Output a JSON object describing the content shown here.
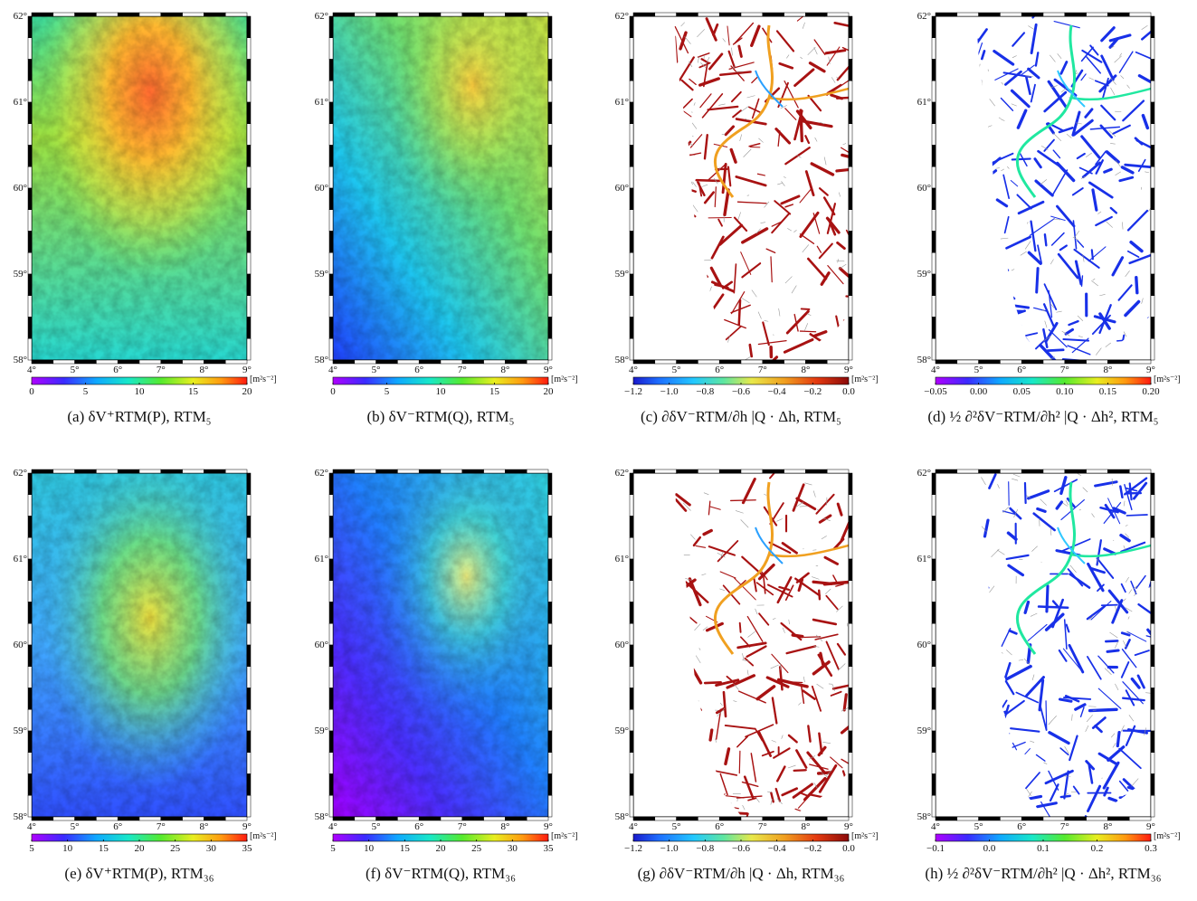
{
  "axes": {
    "lat_labels": [
      "62°",
      "61°",
      "60°",
      "59°",
      "58°"
    ],
    "lon_labels": [
      "4°",
      "5°",
      "6°",
      "7°",
      "8°",
      "9°"
    ]
  },
  "panels": [
    {
      "id": "a",
      "caption": "(a) δV⁺RTM(P), RTM₅",
      "field": "smooth-high-center",
      "colorbar": {
        "ticks": [
          "0",
          "5",
          "10",
          "15",
          "20"
        ],
        "unit": "[m²s⁻²]",
        "palette": "rainbow"
      }
    },
    {
      "id": "b",
      "caption": "(b) δV⁻RTM(Q), RTM₅",
      "field": "smooth-gradient",
      "colorbar": {
        "ticks": [
          "0",
          "5",
          "10",
          "15",
          "20"
        ],
        "unit": "[m²s⁻²]",
        "palette": "rainbow"
      }
    },
    {
      "id": "c",
      "caption": "(c) ∂δV⁻RTM/∂h |Q · Δh, RTM₅",
      "field": "river-red",
      "colorbar": {
        "ticks": [
          "−1.2",
          "−1.0",
          "−0.8",
          "−0.6",
          "−0.4",
          "−0.2",
          "0.0"
        ],
        "unit": "[m²s⁻²]",
        "palette": "blue-red"
      }
    },
    {
      "id": "d",
      "caption": "(d) ½ ∂²δV⁻RTM/∂h² |Q · Δh², RTM₅",
      "field": "river-blue",
      "colorbar": {
        "ticks": [
          "−0.05",
          "0.00",
          "0.05",
          "0.10",
          "0.15",
          "0.20"
        ],
        "unit": "[m²s⁻²]",
        "palette": "rainbow"
      }
    },
    {
      "id": "e",
      "caption": "(e) δV⁺RTM(P), RTM₃₆",
      "field": "smooth-high-center-cool",
      "colorbar": {
        "ticks": [
          "5",
          "10",
          "15",
          "20",
          "25",
          "30",
          "35"
        ],
        "unit": "[m²s⁻²]",
        "palette": "rainbow"
      }
    },
    {
      "id": "f",
      "caption": "(f) δV⁻RTM(Q), RTM₃₆",
      "field": "smooth-gradient-purple",
      "colorbar": {
        "ticks": [
          "5",
          "10",
          "15",
          "20",
          "25",
          "30",
          "35"
        ],
        "unit": "[m²s⁻²]",
        "palette": "rainbow"
      }
    },
    {
      "id": "g",
      "caption": "(g) ∂δV⁻RTM/∂h |Q · Δh, RTM₃₆",
      "field": "river-red",
      "colorbar": {
        "ticks": [
          "−1.2",
          "−1.0",
          "−0.8",
          "−0.6",
          "−0.4",
          "−0.2",
          "0.0"
        ],
        "unit": "[m²s⁻²]",
        "palette": "blue-red"
      }
    },
    {
      "id": "h",
      "caption": "(h) ½ ∂²δV⁻RTM/∂h² |Q · Δh², RTM₃₆",
      "field": "river-blue",
      "colorbar": {
        "ticks": [
          "−0.1",
          "0.0",
          "0.1",
          "0.2",
          "0.3"
        ],
        "unit": "[m²s⁻²]",
        "palette": "rainbow"
      }
    }
  ]
}
